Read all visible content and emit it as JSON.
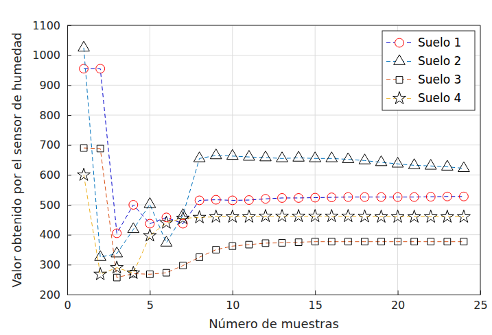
{
  "chart_data": {
    "type": "line",
    "x_label": "Número de muestras",
    "y_label": "Valor obtenido por el sensor de humedad",
    "x": [
      1,
      2,
      3,
      4,
      5,
      6,
      7,
      8,
      9,
      10,
      11,
      12,
      13,
      14,
      15,
      16,
      17,
      18,
      19,
      20,
      21,
      22,
      23,
      24
    ],
    "series": [
      {
        "name": "Suelo 1",
        "color": "#0000cc",
        "marker": "circle",
        "line_style": "dashed",
        "values": [
          955,
          955,
          405,
          500,
          437,
          458,
          437,
          515,
          517,
          515,
          516,
          520,
          523,
          523,
          524,
          525,
          526,
          526,
          526,
          526,
          526,
          527,
          528,
          528
        ]
      },
      {
        "name": "Suelo 2",
        "color": "#0072bd",
        "marker": "triangle",
        "line_style": "dashed",
        "values": [
          1025,
          325,
          337,
          418,
          502,
          373,
          465,
          655,
          665,
          663,
          660,
          658,
          655,
          657,
          655,
          655,
          652,
          648,
          642,
          637,
          632,
          630,
          627,
          622
        ]
      },
      {
        "name": "Suelo 3",
        "color": "#d95319",
        "marker": "square",
        "line_style": "dashed",
        "values": [
          690,
          688,
          257,
          270,
          268,
          273,
          297,
          325,
          350,
          362,
          367,
          372,
          373,
          375,
          377,
          377,
          377,
          377,
          377,
          377,
          377,
          377,
          377,
          377
        ]
      },
      {
        "name": "Suelo 4",
        "color": "#edb120",
        "marker": "star",
        "line_style": "dashed",
        "values": [
          600,
          268,
          290,
          272,
          397,
          440,
          455,
          458,
          460,
          460,
          460,
          462,
          462,
          462,
          462,
          462,
          462,
          461,
          460,
          460,
          460,
          460,
          460,
          460
        ]
      }
    ],
    "xlim": [
      0,
      25
    ],
    "xticks": [
      0,
      5,
      10,
      15,
      20,
      25
    ],
    "ylim": [
      200,
      1100
    ],
    "yticks": [
      200,
      300,
      400,
      500,
      600,
      700,
      800,
      900,
      1000,
      1100
    ],
    "grid": true,
    "legend": "northeast"
  }
}
